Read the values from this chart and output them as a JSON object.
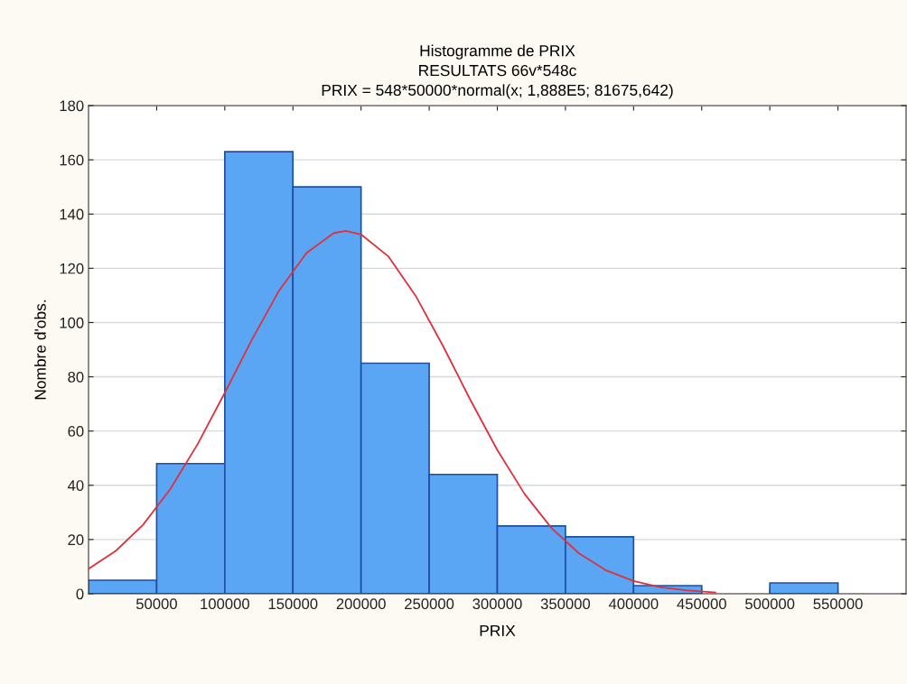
{
  "chart_data": {
    "type": "histogram",
    "title": "Histogramme de PRIX\nRESULTATS 66v*548c\nPRIX = 548*50000*normal(x; 1,888E5; 81675,642)",
    "xlabel": "PRIX",
    "ylabel": "Nombre d'obs.",
    "bins": [
      0,
      50000,
      100000,
      150000,
      200000,
      250000,
      300000,
      350000,
      400000,
      450000,
      500000,
      550000,
      600000
    ],
    "values": [
      5,
      48,
      163,
      150,
      85,
      44,
      25,
      21,
      3,
      0,
      4,
      0
    ],
    "color": "#5aa6f5",
    "series": [
      {
        "type": "line",
        "color": "#e0303a",
        "x": [
          0,
          20000,
          40000,
          60000,
          80000,
          100000,
          120000,
          140000,
          160000,
          180000,
          188800,
          200000,
          220000,
          240000,
          260000,
          280000,
          300000,
          320000,
          340000,
          360000,
          380000,
          400000,
          420000,
          440000,
          460000
        ],
        "values": [
          9.2,
          15.8,
          25.4,
          38.6,
          55.1,
          74.1,
          93.8,
          111.9,
          125.7,
          133.0,
          133.8,
          132.5,
          124.4,
          109.9,
          91.5,
          71.7,
          53.0,
          36.8,
          24.1,
          14.9,
          8.6,
          4.7,
          2.4,
          1.2,
          0.5
        ]
      }
    ],
    "xlim": [
      0,
      600000
    ],
    "ylim": [
      0,
      180
    ],
    "xticks": [
      50000,
      100000,
      150000,
      200000,
      250000,
      300000,
      350000,
      400000,
      450000,
      500000,
      550000
    ],
    "yticks": [
      0,
      20,
      40,
      60,
      80,
      100,
      120,
      140,
      160,
      180
    ],
    "grid": "y",
    "legend": false
  }
}
